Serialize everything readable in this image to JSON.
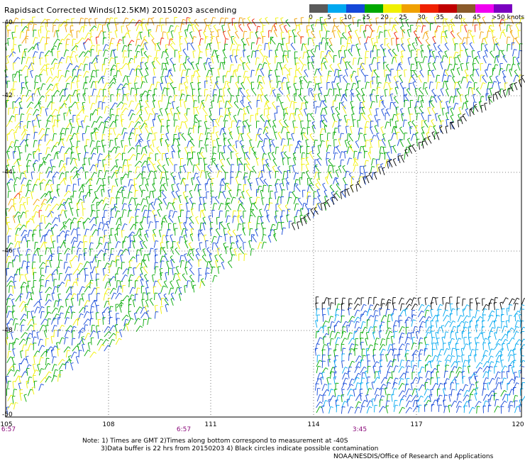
{
  "title": "Rapidsact Corrected Winds(12.5KM) 20150203 ascending",
  "colorbar": {
    "labels": [
      "0",
      "5",
      "10",
      "15",
      "20",
      "25",
      "30",
      "35",
      "40",
      "45",
      ">50 knots"
    ],
    "colors": [
      "#5a5a5a",
      "#00a8f0",
      "#1448d8",
      "#00a800",
      "#f0f000",
      "#f0a000",
      "#f02000",
      "#c00000",
      "#8a5a2a",
      "#f000f0",
      "#7a00c0"
    ]
  },
  "lat_ticks": [
    "-40",
    "-42",
    "-44",
    "-46",
    "-48",
    "-50"
  ],
  "lon_ticks": [
    "105",
    "108",
    "111",
    "114",
    "117",
    "120"
  ],
  "time_labels": [
    "6:57",
    "6:57",
    "3:45"
  ],
  "notes": {
    "line1": "Note: 1) Times are GMT 2)Times along bottom correspond to measurement at -40S",
    "line2": "3)Data buffer is 22 hrs from 20150203 4) Black circles indicate possible contamination",
    "line3": "NOAA/NESDIS/Office of Research and Applications"
  }
}
